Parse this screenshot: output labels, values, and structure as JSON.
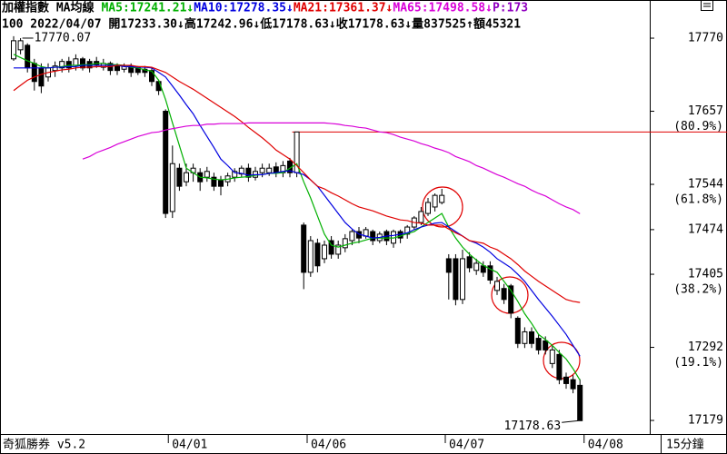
{
  "chart_data": {
    "type": "candlestick",
    "title": "加權指數 MA均線",
    "info": "100 2022/04/07 開17233.30↓高17242.96↓低17178.63↓收17178.63↓量837525↑額45321",
    "legend_tail": "P:173",
    "up_color": "#ffffff",
    "down_color": "#000000",
    "open": [
      17738,
      17752,
      17759,
      17731,
      17724,
      17710,
      17720,
      17724,
      17734,
      17728,
      17738,
      17734,
      17734,
      17725,
      17731,
      17727,
      17722,
      17727,
      17724,
      17722,
      17720,
      17703,
      17657,
      17502,
      17569,
      17548,
      17562,
      17562,
      17555,
      17555,
      17550,
      17548,
      17555,
      17560,
      17569,
      17555,
      17562,
      17562,
      17571,
      17562,
      17580,
      17562,
      17481,
      17408,
      17453,
      17429,
      17457,
      17436,
      17446,
      17457,
      17471,
      17464,
      17471,
      17457,
      17471,
      17453,
      17471,
      17467,
      17478,
      17485,
      17499,
      17509,
      17516,
      17429,
      17429,
      17366,
      17432,
      17411,
      17418,
      17418,
      17380,
      17383,
      17387,
      17337,
      17298,
      17316,
      17306,
      17302,
      17267,
      17281,
      17246,
      17242,
      17233.3
    ],
    "high": [
      17773,
      17770.07,
      17762,
      17738,
      17731,
      17731,
      17734,
      17738,
      17741,
      17745,
      17741,
      17738,
      17741,
      17738,
      17734,
      17731,
      17731,
      17731,
      17727,
      17727,
      17724,
      17706,
      17660,
      17604,
      17576,
      17576,
      17576,
      17569,
      17571,
      17562,
      17557,
      17562,
      17569,
      17573,
      17576,
      17571,
      17576,
      17576,
      17578,
      17580,
      17585,
      17625,
      17485,
      17464,
      17460,
      17457,
      17464,
      17457,
      17467,
      17474,
      17478,
      17478,
      17474,
      17471,
      17474,
      17474,
      17474,
      17481,
      17495,
      17509,
      17523,
      17530,
      17537,
      17436,
      17436,
      17443,
      17439,
      17429,
      17425,
      17425,
      17401,
      17390,
      17390,
      17340,
      17323,
      17323,
      17313,
      17309,
      17295,
      17288,
      17253,
      17249,
      17242.96
    ],
    "low": [
      17735,
      17745,
      17717,
      17689,
      17685,
      17703,
      17710,
      17717,
      17717,
      17720,
      17720,
      17717,
      17724,
      17720,
      17713,
      17713,
      17717,
      17710,
      17713,
      17710,
      17696,
      17682,
      17492,
      17492,
      17534,
      17541,
      17548,
      17534,
      17548,
      17534,
      17527,
      17541,
      17548,
      17555,
      17548,
      17550,
      17555,
      17557,
      17555,
      17555,
      17555,
      17555,
      17382,
      17401,
      17408,
      17422,
      17429,
      17429,
      17439,
      17450,
      17453,
      17460,
      17450,
      17453,
      17450,
      17446,
      17453,
      17460,
      17474,
      17481,
      17495,
      17502,
      17513,
      17366,
      17357,
      17359,
      17408,
      17404,
      17401,
      17390,
      17373,
      17359,
      17337,
      17291,
      17291,
      17291,
      17281,
      17281,
      17260,
      17235,
      17228,
      17221,
      17178.63
    ],
    "close": [
      17766,
      17766,
      17724,
      17703,
      17696,
      17724,
      17727,
      17734,
      17724,
      17738,
      17724,
      17724,
      17728,
      17731,
      17720,
      17720,
      17727,
      17717,
      17717,
      17717,
      17703,
      17689,
      17499,
      17576,
      17541,
      17562,
      17569,
      17548,
      17564,
      17541,
      17541,
      17557,
      17564,
      17569,
      17555,
      17564,
      17569,
      17569,
      17562,
      17573,
      17562,
      17625,
      17408,
      17457,
      17418,
      17450,
      17436,
      17450,
      17460,
      17471,
      17461,
      17474,
      17457,
      17467,
      17457,
      17471,
      17461,
      17478,
      17492,
      17502,
      17516,
      17527,
      17527,
      17408,
      17366,
      17429,
      17415,
      17422,
      17408,
      17396,
      17394,
      17366,
      17345,
      17298,
      17316,
      17298,
      17288,
      17288,
      17288,
      17242,
      17236,
      17228,
      17178.63
    ],
    "series": [
      {
        "name": "MA5:17241.21↓",
        "color": "#00b000",
        "values": [
          17745,
          17740,
          17735,
          17731,
          17726,
          17724,
          17725,
          17726,
          17728,
          17728,
          17729,
          17729,
          17731,
          17731,
          17729,
          17729,
          17728,
          17725,
          17724,
          17721,
          17719,
          17705,
          17675,
          17639,
          17604,
          17569,
          17562,
          17555,
          17554,
          17552,
          17551,
          17552,
          17554,
          17555,
          17556,
          17558,
          17559,
          17561,
          17561,
          17562,
          17569,
          17576,
          17548,
          17523,
          17495,
          17467,
          17450,
          17447,
          17450,
          17453,
          17455,
          17458,
          17461,
          17461,
          17461,
          17461,
          17464,
          17468,
          17471,
          17478,
          17485,
          17492,
          17499,
          17478,
          17461,
          17447,
          17436,
          17427,
          17419,
          17413,
          17408,
          17394,
          17380,
          17363,
          17344,
          17329,
          17312,
          17304,
          17295,
          17284,
          17274,
          17259,
          17241.21
        ]
      },
      {
        "name": "MA10:17278.35↓",
        "color": "#0000e0",
        "values": [
          17724,
          17724,
          17724,
          17724,
          17724,
          17724,
          17725,
          17725,
          17726,
          17726,
          17728,
          17728,
          17728,
          17728,
          17728,
          17728,
          17726,
          17726,
          17725,
          17725,
          17724,
          17717,
          17710,
          17696,
          17682,
          17667,
          17653,
          17635,
          17618,
          17601,
          17583,
          17573,
          17562,
          17561,
          17558,
          17559,
          17559,
          17561,
          17562,
          17564,
          17565,
          17562,
          17559,
          17551,
          17541,
          17527,
          17513,
          17499,
          17485,
          17475,
          17467,
          17464,
          17461,
          17462,
          17464,
          17465,
          17467,
          17469,
          17474,
          17478,
          17481,
          17484,
          17485,
          17478,
          17471,
          17464,
          17457,
          17453,
          17447,
          17439,
          17429,
          17422,
          17415,
          17405,
          17394,
          17380,
          17366,
          17353,
          17340,
          17326,
          17312,
          17295,
          17278.35
        ]
      },
      {
        "name": "MA21:17361.37↓",
        "color": "#e00000",
        "values": [
          17689,
          17697,
          17705,
          17710,
          17714,
          17717,
          17719,
          17721,
          17722,
          17724,
          17725,
          17725,
          17726,
          17726,
          17726,
          17728,
          17728,
          17728,
          17726,
          17726,
          17725,
          17721,
          17717,
          17710,
          17703,
          17697,
          17691,
          17684,
          17677,
          17670,
          17663,
          17656,
          17649,
          17641,
          17632,
          17624,
          17616,
          17607,
          17597,
          17590,
          17583,
          17573,
          17562,
          17551,
          17541,
          17537,
          17531,
          17526,
          17520,
          17514,
          17509,
          17506,
          17503,
          17499,
          17495,
          17492,
          17489,
          17488,
          17485,
          17484,
          17481,
          17481,
          17481,
          17475,
          17469,
          17464,
          17457,
          17455,
          17453,
          17447,
          17443,
          17436,
          17429,
          17420,
          17410,
          17402,
          17394,
          17387,
          17380,
          17373,
          17366,
          17363,
          17361.37
        ]
      },
      {
        "name": "MA65:17498.58↓",
        "color": "#d800d8",
        "values": [
          null,
          null,
          null,
          null,
          null,
          null,
          null,
          null,
          null,
          null,
          17583,
          17587,
          17593,
          17597,
          17601,
          17606,
          17610,
          17614,
          17618,
          17621,
          17624,
          17625,
          17628,
          17630,
          17632,
          17634,
          17635,
          17635,
          17637,
          17637,
          17638,
          17638,
          17638,
          17638,
          17639,
          17639,
          17639,
          17639,
          17639,
          17639,
          17639,
          17639,
          17639,
          17639,
          17639,
          17639,
          17638,
          17637,
          17635,
          17634,
          17632,
          17631,
          17628,
          17625,
          17624,
          17621,
          17617,
          17614,
          17611,
          17607,
          17604,
          17600,
          17597,
          17593,
          17587,
          17583,
          17579,
          17573,
          17569,
          17564,
          17559,
          17555,
          17550,
          17545,
          17541,
          17535,
          17530,
          17526,
          17520,
          17514,
          17509,
          17505,
          17498.58
        ]
      }
    ],
    "ylim": [
      17158,
      17829
    ],
    "yticks": [
      17770,
      17657,
      17544,
      17474,
      17405,
      17292,
      17179
    ],
    "fib_labels": [
      {
        "value": 17657,
        "label": "(80.9%)"
      },
      {
        "value": 17544,
        "label": "(61.8%)"
      },
      {
        "value": 17405,
        "label": "(38.2%)"
      },
      {
        "value": 17292,
        "label": "(19.1%)"
      }
    ],
    "x_labels": [
      "04/01",
      "04/06",
      "04/07",
      "04/08"
    ],
    "max_label": "17770.07",
    "min_label": "17178.63",
    "level_line": 17625,
    "footer_left": "奇狐勝券 v5.2",
    "footer_right": "15分鐘"
  }
}
